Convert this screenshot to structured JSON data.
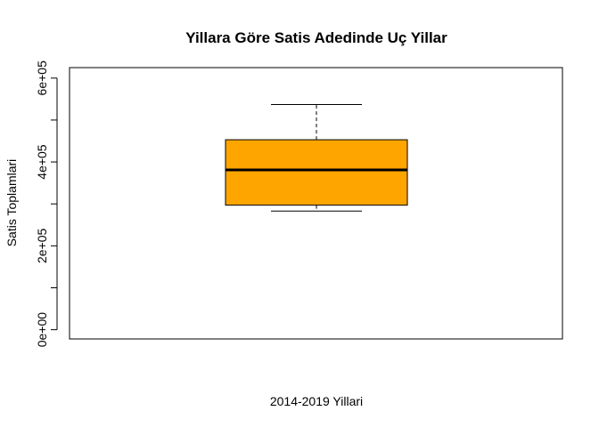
{
  "chart_data": {
    "type": "boxplot",
    "title": "Yillara Göre Satis Adedinde Uç Yillar",
    "xlabel": "2014-2019 Yillari",
    "ylabel": "Satis Toplamlari",
    "ylim": [
      -22000,
      625000
    ],
    "yticks": [
      {
        "value": 0,
        "label": "0e+00"
      },
      {
        "value": 100000,
        "label": ""
      },
      {
        "value": 200000,
        "label": "2e+05"
      },
      {
        "value": 300000,
        "label": ""
      },
      {
        "value": 400000,
        "label": "4e+05"
      },
      {
        "value": 500000,
        "label": ""
      },
      {
        "value": 600000,
        "label": "6e+05"
      }
    ],
    "box": {
      "min": 283000,
      "q1": 297000,
      "median": 381000,
      "q3": 453000,
      "max": 537000
    },
    "box_color": "#FFA500",
    "grid": false
  }
}
